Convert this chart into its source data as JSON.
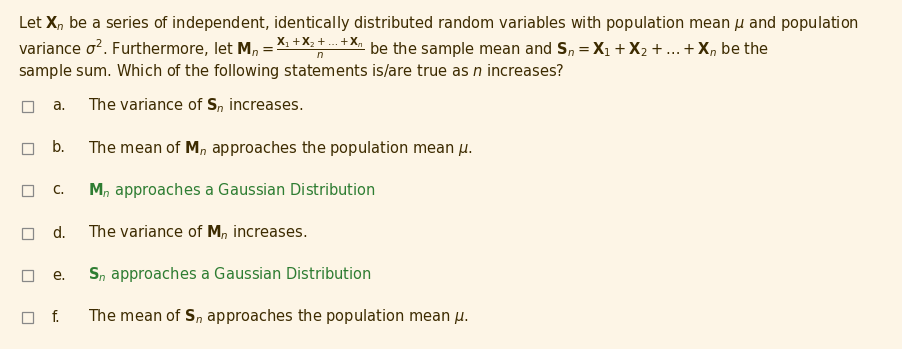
{
  "background_color": "#fdf5e6",
  "text_color": "#3d2b00",
  "colored_text_color": "#2e7d32",
  "figsize": [
    9.02,
    3.49
  ],
  "dpi": 100,
  "para_fontsize": 10.5,
  "option_fontsize": 10.5,
  "checkbox_size": 0.018,
  "options": [
    {
      "label": "a.",
      "text": "The variance of $\\mathbf{S}_n$ increases.",
      "colored": false
    },
    {
      "label": "b.",
      "text": "The mean of $\\mathbf{M}_n$ approaches the population mean $\\mu$.",
      "colored": false
    },
    {
      "label": "c.",
      "text": "$\\mathbf{M}_n$ approaches a Gaussian Distribution",
      "colored": true
    },
    {
      "label": "d.",
      "text": "The variance of $\\mathbf{M}_n$ increases.",
      "colored": false
    },
    {
      "label": "e.",
      "text": "$\\mathbf{S}_n$ approaches a Gaussian Distribution",
      "colored": true
    },
    {
      "label": "f.",
      "text": "The mean of $\\mathbf{S}_n$ approaches the population mean $\\mu$.",
      "colored": false
    }
  ]
}
